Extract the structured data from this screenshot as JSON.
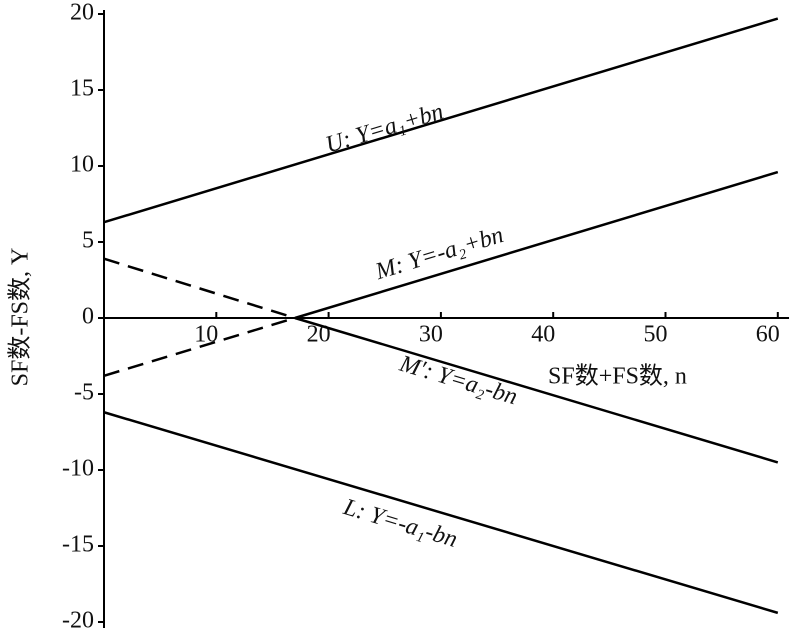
{
  "chart_data": {
    "type": "line",
    "x_label": "SF数+FS数, n",
    "y_label": "SF数-FS数, Y",
    "xlim": [
      0,
      61
    ],
    "ylim": [
      -20,
      20
    ],
    "xticks": [
      10,
      20,
      30,
      40,
      50,
      60
    ],
    "yticks": [
      -20,
      -15,
      -10,
      -5,
      0,
      5,
      10,
      15,
      20
    ],
    "annotations": [
      "U: Y=a₁+bn",
      "M: Y=-a₂+bn",
      "M′: Y=a₂-bn",
      "L: Y=-a₁-bn"
    ],
    "series": [
      {
        "color": "#000000",
        "dashed": false,
        "x": [
          0,
          60
        ],
        "values": [
          6.3,
          19.7
        ]
      },
      {
        "color": "#000000",
        "dashed": true,
        "x": [
          0,
          17
        ],
        "values": [
          -3.8,
          0
        ]
      },
      {
        "color": "#000000",
        "dashed": false,
        "x": [
          17,
          60
        ],
        "values": [
          0,
          9.6
        ]
      },
      {
        "color": "#000000",
        "dashed": true,
        "x": [
          0,
          17
        ],
        "values": [
          3.9,
          0
        ]
      },
      {
        "color": "#000000",
        "dashed": false,
        "x": [
          17,
          60
        ],
        "values": [
          0,
          -9.5
        ]
      },
      {
        "color": "#000000",
        "dashed": false,
        "x": [
          0,
          60
        ],
        "values": [
          -6.2,
          -19.4
        ]
      }
    ]
  }
}
